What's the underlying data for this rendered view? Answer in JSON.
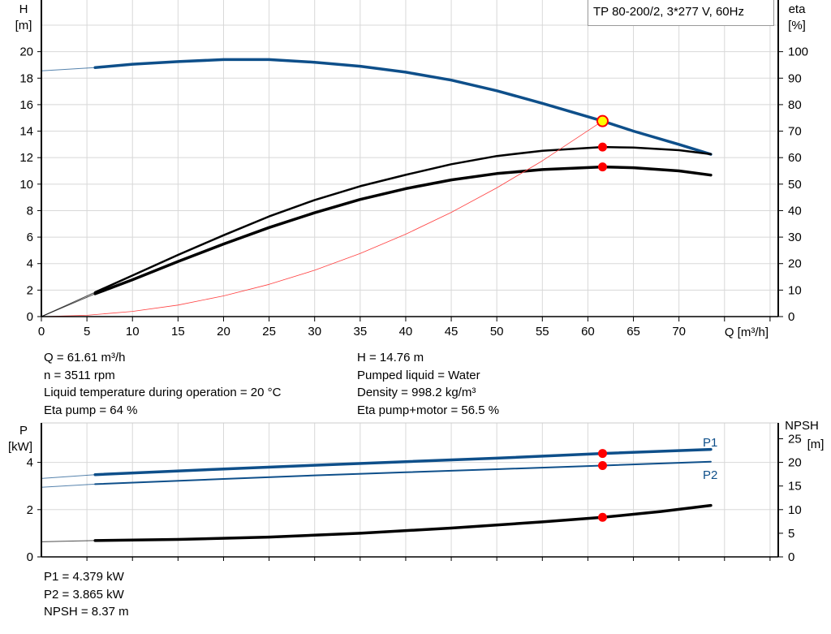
{
  "title": "TP 80-200/2, 3*277 V, 60Hz",
  "colors": {
    "head": "#0e4f8a",
    "efficiency": "#000000",
    "system_curve": "#ff4040",
    "duty_point": "#ff0000",
    "duty_point_head": "#ffff00",
    "grid": "#d8d8d8"
  },
  "chart_data": [
    {
      "type": "line",
      "xlabel": "Q [m³/h]",
      "xlim": [
        0,
        80.9
      ],
      "x_ticks": [
        0,
        5,
        10,
        15,
        20,
        25,
        30,
        35,
        40,
        45,
        50,
        55,
        60,
        65,
        70
      ],
      "y_left": {
        "label": "H",
        "unit": "[m]",
        "lim": [
          0,
          23.9
        ],
        "ticks": [
          0,
          2,
          4,
          6,
          8,
          10,
          12,
          14,
          16,
          18,
          20
        ]
      },
      "y_right": {
        "label": "eta",
        "unit": "[%]",
        "lim": [
          0,
          119.5
        ],
        "ticks": [
          0,
          10,
          20,
          30,
          40,
          50,
          60,
          70,
          80,
          90,
          100
        ]
      },
      "grid": true,
      "series": [
        {
          "id": "H",
          "axis": "left",
          "color": "#0e4f8a",
          "extrapolated": [
            [
              0,
              18.55
            ],
            [
              5.9,
              18.8
            ]
          ],
          "points": [
            [
              5.9,
              18.8
            ],
            [
              10,
              19.05
            ],
            [
              15,
              19.25
            ],
            [
              20,
              19.4
            ],
            [
              25,
              19.4
            ],
            [
              30,
              19.2
            ],
            [
              35,
              18.9
            ],
            [
              40,
              18.45
            ],
            [
              45,
              17.85
            ],
            [
              50,
              17.05
            ],
            [
              55,
              16.1
            ],
            [
              61.61,
              14.76
            ],
            [
              65,
              14.0
            ],
            [
              70,
              13.0
            ],
            [
              73.5,
              12.25
            ]
          ]
        },
        {
          "id": "eta_pump",
          "axis": "right",
          "color": "#000000",
          "extrapolated": [
            [
              0,
              0
            ],
            [
              5.9,
              9.2
            ]
          ],
          "points": [
            [
              5.9,
              9.2
            ],
            [
              10,
              15.5
            ],
            [
              15,
              23.3
            ],
            [
              20,
              30.7
            ],
            [
              25,
              37.8
            ],
            [
              30,
              44
            ],
            [
              35,
              49.2
            ],
            [
              40,
              53.5
            ],
            [
              45,
              57.5
            ],
            [
              50,
              60.6
            ],
            [
              55,
              62.6
            ],
            [
              61.61,
              64
            ],
            [
              65,
              63.8
            ],
            [
              70,
              62.8
            ],
            [
              73.5,
              61.3
            ]
          ]
        },
        {
          "id": "eta_pump_motor",
          "axis": "right",
          "color": "#000000",
          "extrapolated": [
            [
              0,
              0
            ],
            [
              5.9,
              8.6
            ]
          ],
          "points": [
            [
              5.9,
              8.6
            ],
            [
              10,
              13.9
            ],
            [
              15,
              20.8
            ],
            [
              20,
              27.4
            ],
            [
              25,
              33.6
            ],
            [
              30,
              39.2
            ],
            [
              35,
              44.2
            ],
            [
              40,
              48.3
            ],
            [
              45,
              51.6
            ],
            [
              50,
              54
            ],
            [
              55,
              55.5
            ],
            [
              61.61,
              56.5
            ],
            [
              65,
              56.2
            ],
            [
              70,
              55
            ],
            [
              73.5,
              53.4
            ]
          ]
        },
        {
          "id": "system_curve",
          "axis": "left",
          "color": "#ff4040",
          "points": [
            [
              0,
              0
            ],
            [
              5,
              0.1
            ],
            [
              10,
              0.39
            ],
            [
              15,
              0.87
            ],
            [
              20,
              1.56
            ],
            [
              25,
              2.43
            ],
            [
              30,
              3.5
            ],
            [
              35,
              4.76
            ],
            [
              40,
              6.22
            ],
            [
              45,
              7.87
            ],
            [
              50,
              9.72
            ],
            [
              55,
              11.76
            ],
            [
              61.61,
              14.76
            ]
          ]
        }
      ],
      "duty_points": [
        {
          "series": "H",
          "x": 61.61,
          "y": 14.76
        },
        {
          "series": "eta_pump",
          "x": 61.61,
          "y": 64
        },
        {
          "series": "eta_pump_motor",
          "x": 61.61,
          "y": 56.5
        }
      ]
    },
    {
      "type": "line",
      "xlim": [
        0,
        80.9
      ],
      "y_left": {
        "label": "P",
        "unit": "[kW]",
        "lim": [
          0,
          5.67
        ],
        "ticks": [
          0,
          2,
          4
        ]
      },
      "y_right": {
        "label": "NPSH",
        "unit": "[m]",
        "lim": [
          0,
          28.35
        ],
        "ticks": [
          0,
          5,
          10,
          15,
          20,
          25
        ]
      },
      "grid": true,
      "series": [
        {
          "id": "P1",
          "name": "P1",
          "axis": "left",
          "color": "#0e4f8a",
          "extrapolated": [
            [
              0,
              3.32
            ],
            [
              5.9,
              3.48
            ]
          ],
          "points": [
            [
              5.9,
              3.48
            ],
            [
              20,
              3.72
            ],
            [
              30,
              3.88
            ],
            [
              40,
              4.03
            ],
            [
              50,
              4.18
            ],
            [
              61.61,
              4.379
            ],
            [
              73.5,
              4.55
            ]
          ]
        },
        {
          "id": "P2",
          "name": "P2",
          "axis": "left",
          "color": "#0e4f8a",
          "extrapolated": [
            [
              0,
              2.95
            ],
            [
              5.9,
              3.08
            ]
          ],
          "points": [
            [
              5.9,
              3.08
            ],
            [
              20,
              3.3
            ],
            [
              30,
              3.45
            ],
            [
              40,
              3.58
            ],
            [
              50,
              3.71
            ],
            [
              61.61,
              3.865
            ],
            [
              73.5,
              4.03
            ]
          ]
        },
        {
          "id": "NPSH",
          "axis": "right",
          "color": "#000000",
          "extrapolated": [
            [
              0,
              3.2
            ],
            [
              5.9,
              3.45
            ]
          ],
          "points": [
            [
              5.9,
              3.45
            ],
            [
              15,
              3.7
            ],
            [
              25,
              4.2
            ],
            [
              35,
              5.0
            ],
            [
              45,
              6.1
            ],
            [
              55,
              7.4
            ],
            [
              61.61,
              8.37
            ],
            [
              68,
              9.6
            ],
            [
              73.5,
              10.9
            ]
          ]
        }
      ],
      "duty_points": [
        {
          "series": "P1",
          "x": 61.61,
          "y": 4.379
        },
        {
          "series": "P2",
          "x": 61.61,
          "y": 3.865
        },
        {
          "series": "NPSH",
          "x": 61.61,
          "y": 8.37
        }
      ]
    }
  ],
  "info_left": [
    "Q = 61.61 m³/h",
    "n = 3511 rpm",
    "Liquid temperature during operation = 20 °C",
    "Eta pump = 64 %"
  ],
  "info_right": [
    "H = 14.76 m",
    "Pumped liquid = Water",
    "Density = 998.2 kg/m³",
    "Eta pump+motor = 56.5 %"
  ],
  "info_bottom": [
    "P1 = 4.379 kW",
    "P2 = 3.865 kW",
    "NPSH = 8.37 m"
  ]
}
